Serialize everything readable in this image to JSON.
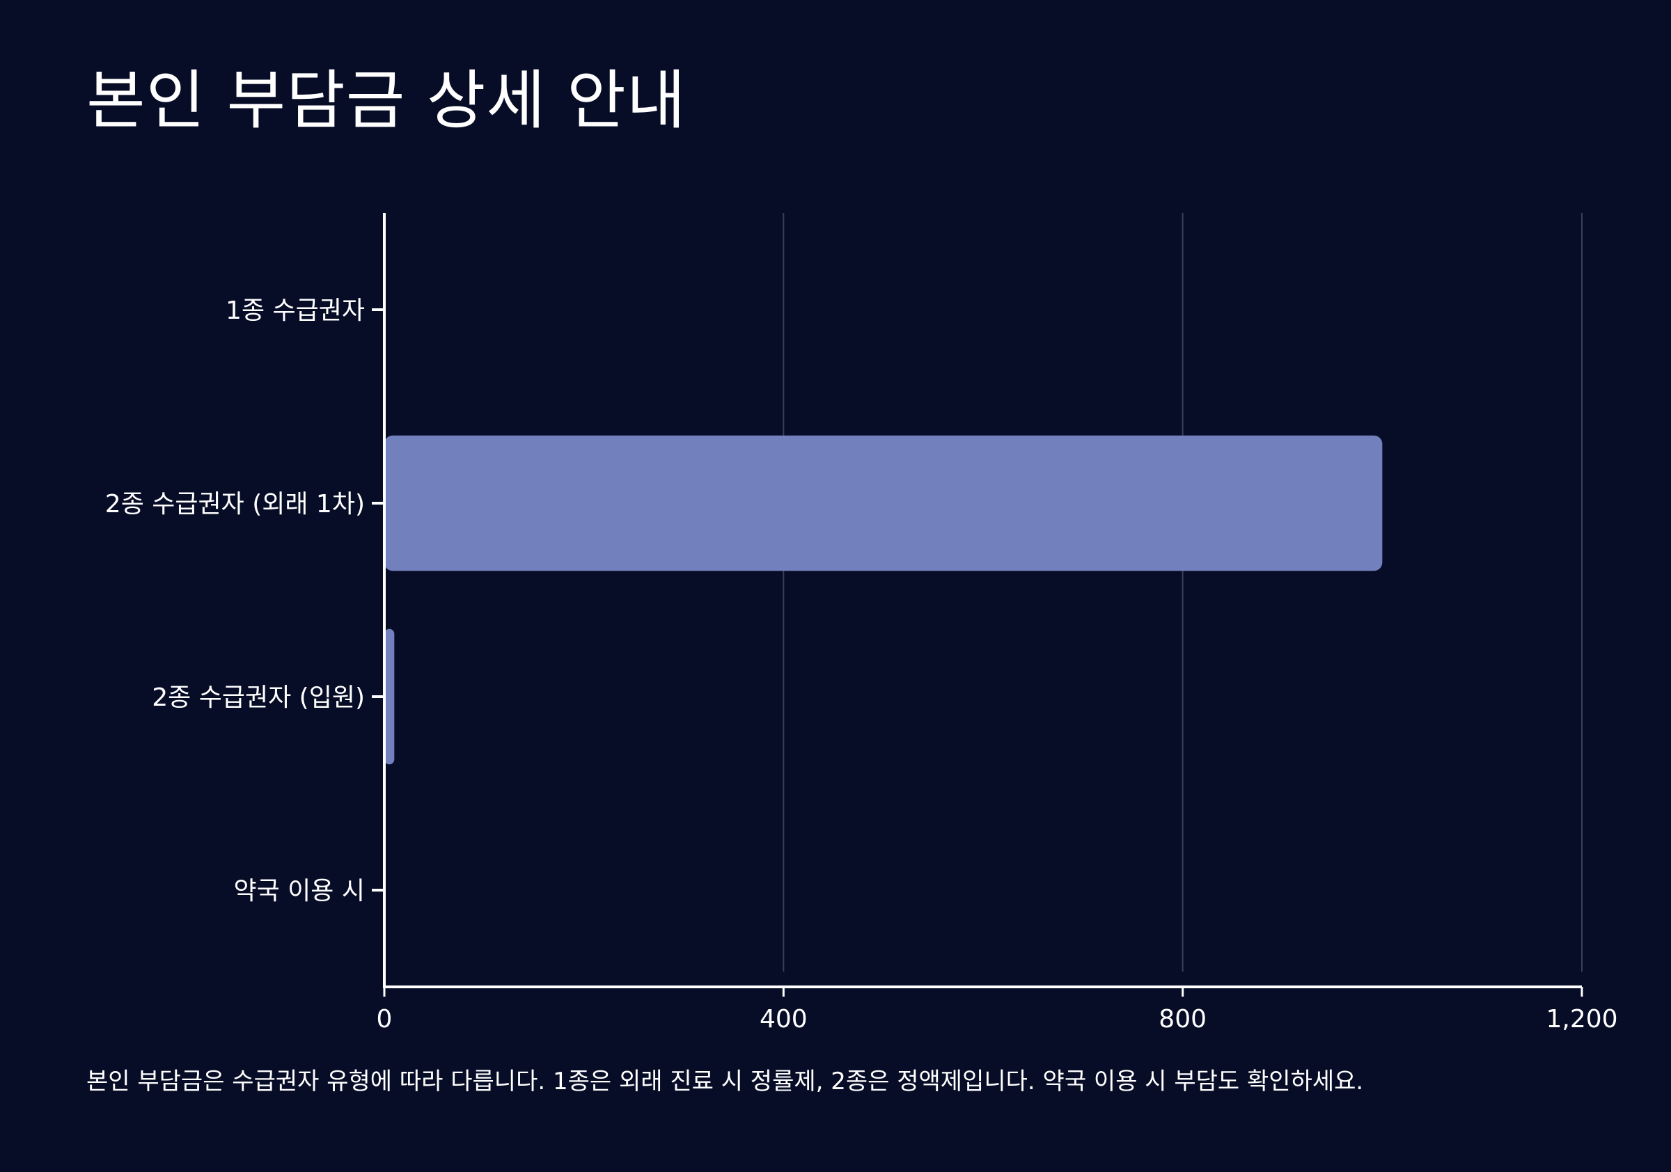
{
  "title": "본인 부담금 상세 안내",
  "footnote": "본인 부담금은 수급권자 유형에 따라 다릅니다. 1종은 외래 진료 시 정률제, 2종은 정액제입니다. 약국 이용 시 부담도 확인하세요.",
  "colors": {
    "background": "#080d27",
    "bar": "#7280bd",
    "axis": "#ffffff",
    "grid": "#3a3f55"
  },
  "chart_data": {
    "type": "bar",
    "orientation": "horizontal",
    "categories": [
      "1종 수급권자",
      "2종 수급권자 (외래 1차)",
      "2종 수급권자 (입원)",
      "약국 이용 시"
    ],
    "values": [
      0,
      1000,
      10,
      0
    ],
    "xlim": [
      0,
      1200
    ],
    "xticks": [
      0,
      400,
      800,
      1200
    ],
    "xtick_labels": [
      "0",
      "400",
      "800",
      "1,200"
    ],
    "grid": "vertical",
    "legend": "none"
  }
}
